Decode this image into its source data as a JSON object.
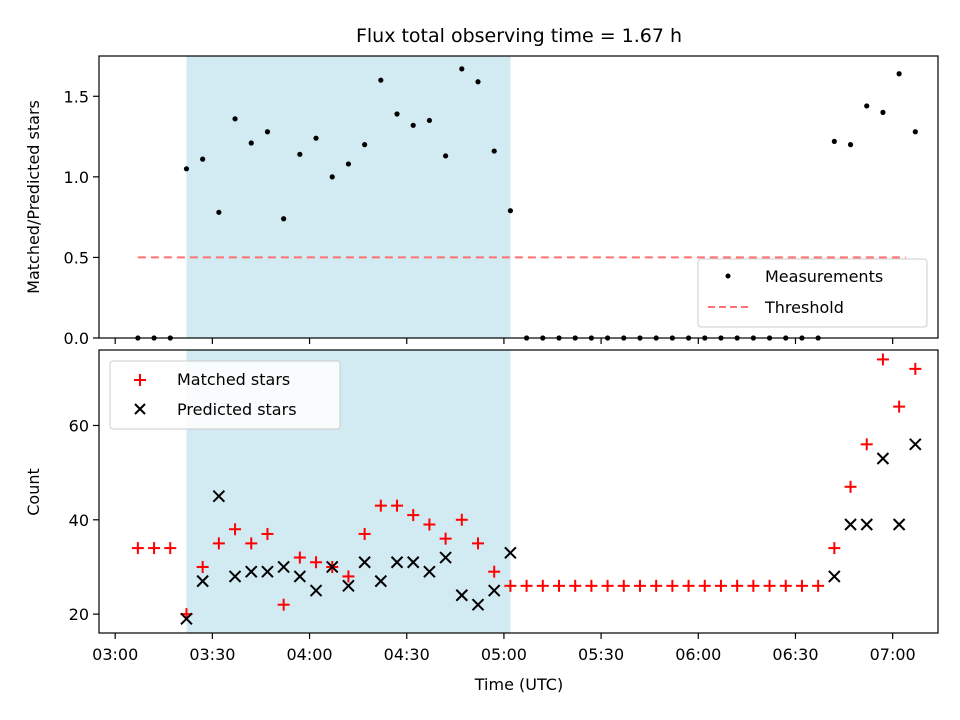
{
  "chart_data": [
    {
      "type": "scatter",
      "title": "Flux total observing time = 1.67 h",
      "xlabel": "",
      "ylabel": "Matched/Predicted stars",
      "x_axis": "time_utc",
      "xlim": [
        "02:55",
        "07:14"
      ],
      "ylim": [
        0,
        1.75
      ],
      "yticks": [
        0.0,
        0.5,
        1.0,
        1.5
      ],
      "ytick_labels": [
        "0.0",
        "0.5",
        "1.0",
        "1.5"
      ],
      "shaded_span": {
        "start": "03:22",
        "end": "05:02",
        "color": "#add8e6"
      },
      "legend": {
        "placement": "lower-right",
        "entries": [
          "Measurements",
          "Threshold"
        ]
      },
      "series": [
        {
          "name": "Measurements",
          "marker": "dot",
          "color": "#000000",
          "x": [
            "03:07",
            "03:12",
            "03:17",
            "03:22",
            "03:27",
            "03:32",
            "03:37",
            "03:42",
            "03:47",
            "03:52",
            "03:57",
            "04:02",
            "04:07",
            "04:12",
            "04:17",
            "04:22",
            "04:27",
            "04:32",
            "04:37",
            "04:42",
            "04:47",
            "04:52",
            "04:57",
            "05:02",
            "05:07",
            "05:12",
            "05:17",
            "05:22",
            "05:27",
            "05:32",
            "05:37",
            "05:42",
            "05:47",
            "05:52",
            "05:57",
            "06:02",
            "06:07",
            "06:12",
            "06:17",
            "06:22",
            "06:27",
            "06:32",
            "06:37",
            "06:42",
            "06:47",
            "06:52",
            "06:57",
            "07:02",
            "07:07"
          ],
          "values": [
            0,
            0,
            0,
            1.05,
            1.11,
            0.78,
            1.36,
            1.21,
            1.28,
            0.74,
            1.14,
            1.24,
            1.0,
            1.08,
            1.2,
            1.6,
            1.39,
            1.32,
            1.35,
            1.13,
            1.67,
            1.59,
            1.16,
            0.79,
            0,
            0,
            0,
            0,
            0,
            0,
            0,
            0,
            0,
            0,
            0,
            0,
            0,
            0,
            0,
            0,
            0,
            0,
            0,
            1.22,
            1.2,
            1.44,
            1.4,
            1.64,
            1.28
          ]
        },
        {
          "name": "Threshold",
          "line_style": "dashed",
          "color": "#ff7070",
          "x": [
            "03:07",
            "07:04"
          ],
          "values": [
            0.5,
            0.5
          ]
        }
      ]
    },
    {
      "type": "scatter",
      "title": "",
      "xlabel": "Time (UTC)",
      "ylabel": "Count",
      "x_axis": "time_utc",
      "xlim": [
        "02:55",
        "07:14"
      ],
      "ylim": [
        16,
        76
      ],
      "yticks": [
        20,
        40,
        60
      ],
      "ytick_labels": [
        "20",
        "40",
        "60"
      ],
      "xticks": [
        "03:00",
        "03:30",
        "04:00",
        "04:30",
        "05:00",
        "05:30",
        "06:00",
        "06:30",
        "07:00"
      ],
      "xtick_labels": [
        "03:00",
        "03:30",
        "04:00",
        "04:30",
        "05:00",
        "05:30",
        "06:00",
        "06:30",
        "07:00"
      ],
      "shaded_span": {
        "start": "03:22",
        "end": "05:02",
        "color": "#add8e6"
      },
      "legend": {
        "placement": "upper-left",
        "entries": [
          "Matched stars",
          "Predicted stars"
        ]
      },
      "series": [
        {
          "name": "Matched stars",
          "marker": "plus",
          "color": "#ff0000",
          "x": [
            "03:07",
            "03:12",
            "03:17",
            "03:22",
            "03:27",
            "03:32",
            "03:37",
            "03:42",
            "03:47",
            "03:52",
            "03:57",
            "04:02",
            "04:07",
            "04:12",
            "04:17",
            "04:22",
            "04:27",
            "04:32",
            "04:37",
            "04:42",
            "04:47",
            "04:52",
            "04:57",
            "05:02",
            "05:07",
            "05:12",
            "05:17",
            "05:22",
            "05:27",
            "05:32",
            "05:37",
            "05:42",
            "05:47",
            "05:52",
            "05:57",
            "06:02",
            "06:07",
            "06:12",
            "06:17",
            "06:22",
            "06:27",
            "06:32",
            "06:37",
            "06:42",
            "06:47",
            "06:52",
            "06:57",
            "07:02",
            "07:07"
          ],
          "values": [
            34,
            34,
            34,
            20,
            30,
            35,
            38,
            35,
            37,
            22,
            32,
            31,
            30,
            28,
            37,
            43,
            43,
            41,
            39,
            36,
            40,
            35,
            29,
            26,
            26,
            26,
            26,
            26,
            26,
            26,
            26,
            26,
            26,
            26,
            26,
            26,
            26,
            26,
            26,
            26,
            26,
            26,
            26,
            34,
            47,
            56,
            74,
            64,
            72
          ]
        },
        {
          "name": "Predicted stars",
          "marker": "x",
          "color": "#000000",
          "x": [
            "03:22",
            "03:27",
            "03:32",
            "03:37",
            "03:42",
            "03:47",
            "03:52",
            "03:57",
            "04:02",
            "04:07",
            "04:12",
            "04:17",
            "04:22",
            "04:27",
            "04:32",
            "04:37",
            "04:42",
            "04:47",
            "04:52",
            "04:57",
            "05:02",
            "06:42",
            "06:47",
            "06:52",
            "06:57",
            "07:02",
            "07:07"
          ],
          "values": [
            19,
            27,
            45,
            28,
            29,
            29,
            30,
            28,
            25,
            30,
            26,
            31,
            27,
            31,
            31,
            29,
            32,
            24,
            22,
            25,
            33,
            28,
            39,
            39,
            53,
            39,
            56
          ]
        }
      ]
    }
  ]
}
